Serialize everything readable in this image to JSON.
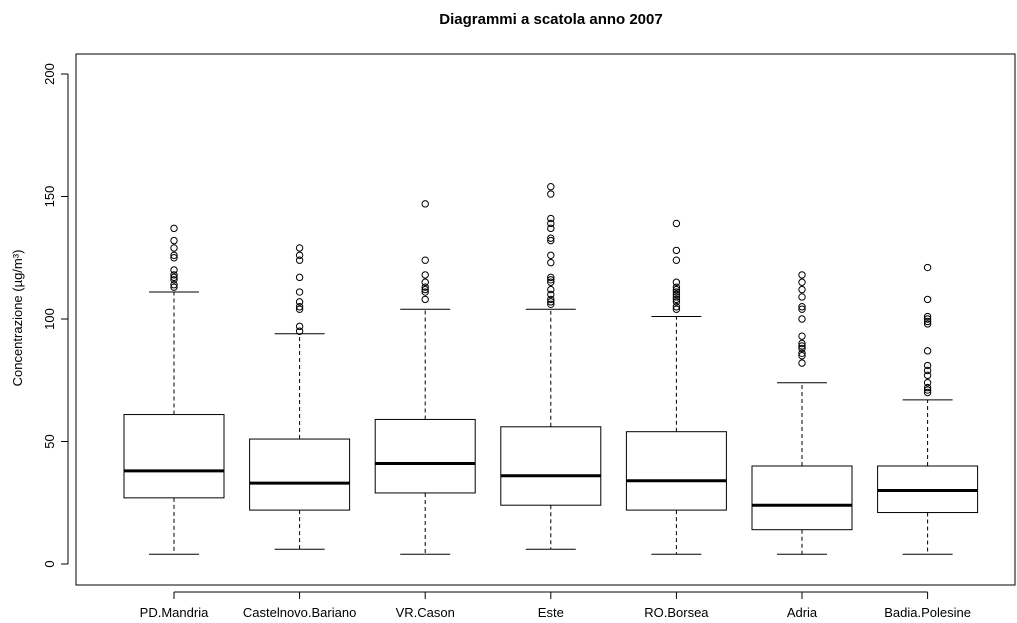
{
  "chart_data": {
    "type": "boxplot",
    "title": "Diagrammi a scatola anno 2007",
    "xlabel": "",
    "ylabel": "Concentrazione (µg/m³)",
    "ylim": [
      0,
      200
    ],
    "yticks": [
      0,
      50,
      100,
      150,
      200
    ],
    "grid": false,
    "legend": "none",
    "categories": [
      "PD.Mandria",
      "Castelnovo.Bariano",
      "VR.Cason",
      "Este",
      "RO.Borsea",
      "Adria",
      "Badia.Polesine"
    ],
    "boxes": [
      {
        "name": "PD.Mandria",
        "whisker_low": 4,
        "q1": 27,
        "median": 38,
        "q3": 61,
        "whisker_high": 111,
        "outliers": [
          113,
          114,
          116,
          117,
          118,
          120,
          125,
          126,
          129,
          132,
          137
        ]
      },
      {
        "name": "Castelnovo.Bariano",
        "whisker_low": 6,
        "q1": 22,
        "median": 33,
        "q3": 51,
        "whisker_high": 94,
        "outliers": [
          95,
          97,
          104,
          105,
          107,
          111,
          117,
          124,
          126,
          129
        ]
      },
      {
        "name": "VR.Cason",
        "whisker_low": 4,
        "q1": 29,
        "median": 41,
        "q3": 59,
        "whisker_high": 104,
        "outliers": [
          108,
          111,
          112,
          113,
          115,
          118,
          124,
          147
        ]
      },
      {
        "name": "Este",
        "whisker_low": 6,
        "q1": 24,
        "median": 36,
        "q3": 56,
        "whisker_high": 104,
        "outliers": [
          106,
          107,
          108,
          110,
          112,
          115,
          116,
          117,
          123,
          126,
          132,
          133,
          137,
          139,
          141,
          151,
          154
        ]
      },
      {
        "name": "RO.Borsea",
        "whisker_low": 4,
        "q1": 22,
        "median": 34,
        "q3": 54,
        "whisker_high": 101,
        "outliers": [
          104,
          105,
          107,
          108,
          109,
          110,
          111,
          112,
          113,
          115,
          124,
          128,
          139
        ]
      },
      {
        "name": "Adria",
        "whisker_low": 4,
        "q1": 14,
        "median": 24,
        "q3": 40,
        "whisker_high": 74,
        "outliers": [
          82,
          85,
          86,
          88,
          89,
          90,
          93,
          100,
          104,
          105,
          109,
          112,
          115,
          118
        ]
      },
      {
        "name": "Badia.Polesine",
        "whisker_low": 4,
        "q1": 21,
        "median": 30,
        "q3": 40,
        "whisker_high": 67,
        "outliers": [
          70,
          71,
          72,
          74,
          77,
          79,
          81,
          87,
          98,
          99,
          100,
          101,
          108,
          121
        ]
      }
    ]
  }
}
